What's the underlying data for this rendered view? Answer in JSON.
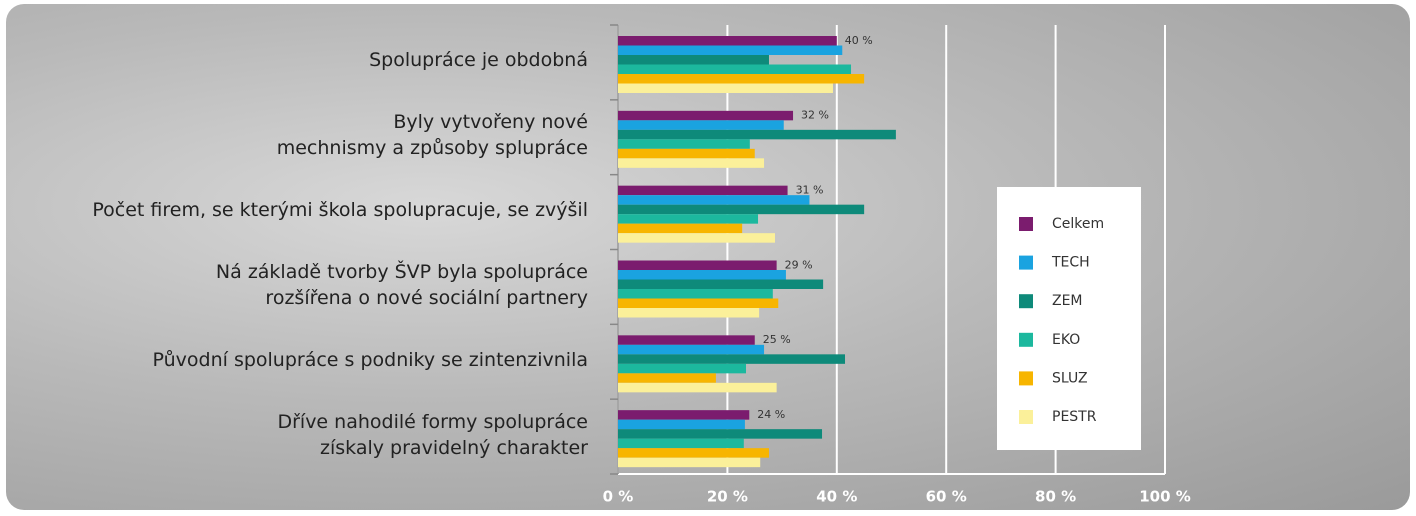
{
  "chart_data": {
    "type": "hbar",
    "categories": [
      "Spolupráce je obdobná",
      "Byly vytvořeny nové\nmechnismy a způsoby splupráce",
      "Počet firem, se kterými škola spolupracuje, se zvýšil",
      "Ná základě tvorby ŠVP byla spolupráce\nrozšířena o nové sociální partnery",
      "Původní spolupráce s podniky se zintenzivnila",
      "Dříve nahodilé formy spolupráce\nzískaly pravidelný charakter"
    ],
    "series": [
      {
        "name": "Celkem",
        "color": "#7b1c6e",
        "values": [
          40,
          32,
          31,
          29,
          25,
          24
        ],
        "value_labels": [
          "40 %",
          "32 %",
          "31 %",
          "29 %",
          "25 %",
          "24 %"
        ]
      },
      {
        "name": "TECH",
        "color": "#1aa3e0",
        "values": [
          41,
          30.3,
          35,
          30.7,
          26.7,
          23.2
        ]
      },
      {
        "name": "ZEM",
        "color": "#0e8a7a",
        "values": [
          27.6,
          50.8,
          45,
          37.5,
          41.5,
          37.3
        ]
      },
      {
        "name": "EKO",
        "color": "#1cb89e",
        "values": [
          42.6,
          24.1,
          25.6,
          28.3,
          23.4,
          23
        ]
      },
      {
        "name": "SLUZ",
        "color": "#f7b500",
        "values": [
          45,
          25,
          22.7,
          29.3,
          17.9,
          27.6
        ]
      },
      {
        "name": "PESTR",
        "color": "#fbf09a",
        "values": [
          39.3,
          26.7,
          28.7,
          25.8,
          29,
          26
        ]
      }
    ],
    "xlim": [
      0,
      100
    ],
    "xticks": [
      {
        "value": 0,
        "label": "0 %"
      },
      {
        "value": 20,
        "label": "20 %"
      },
      {
        "value": 40,
        "label": "40 %"
      },
      {
        "value": 60,
        "label": "60 %"
      },
      {
        "value": 80,
        "label": "80 %"
      },
      {
        "value": 100,
        "label": "100 %"
      }
    ],
    "grid": true,
    "legend": "right"
  }
}
